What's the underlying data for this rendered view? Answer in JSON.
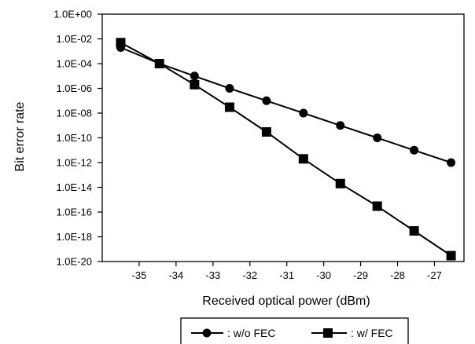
{
  "chart_data": {
    "type": "line",
    "title": "",
    "xlabel": "Received optical power (dBm)",
    "ylabel": "Bit error rate",
    "y_scale": "log10",
    "xlim": [
      -36,
      -26.2
    ],
    "ylim": [
      1e-20,
      1
    ],
    "x_ticks": [
      -35,
      -34,
      -33,
      -32,
      -31,
      -30,
      -29,
      -28,
      -27
    ],
    "x_tick_labels": [
      "-35",
      "-34",
      "-33",
      "-32",
      "-31",
      "-30",
      "-29",
      "-28",
      "-27"
    ],
    "y_tick_labels": [
      "1.0E+00",
      "1.0E-02",
      "1.0E-04",
      "1.0E-06",
      "1.0E-08",
      "1.0E-10",
      "1.0E-12",
      "1.0E-14",
      "1.0E-16",
      "1.0E-18",
      "1.0E-20"
    ],
    "grid": false,
    "legend_position": "bottom",
    "series": [
      {
        "name": ": w/o FEC",
        "marker": "circle",
        "color": "#000000",
        "x": [
          -35.5,
          -34.45,
          -33.5,
          -32.55,
          -31.55,
          -30.55,
          -29.55,
          -28.55,
          -27.55,
          -26.55
        ],
        "y": [
          0.002,
          0.0001,
          1e-05,
          1e-06,
          1e-07,
          1e-08,
          1e-09,
          1e-10,
          1e-11,
          1e-12
        ]
      },
      {
        "name": ": w/ FEC",
        "marker": "square",
        "color": "#000000",
        "x": [
          -35.5,
          -34.45,
          -33.5,
          -32.55,
          -31.55,
          -30.55,
          -29.55,
          -28.55,
          -27.55,
          -26.55
        ],
        "y": [
          0.005,
          0.0001,
          2e-06,
          3e-08,
          3e-10,
          2e-12,
          2e-14,
          3e-16,
          3e-18,
          3e-20
        ]
      }
    ]
  }
}
